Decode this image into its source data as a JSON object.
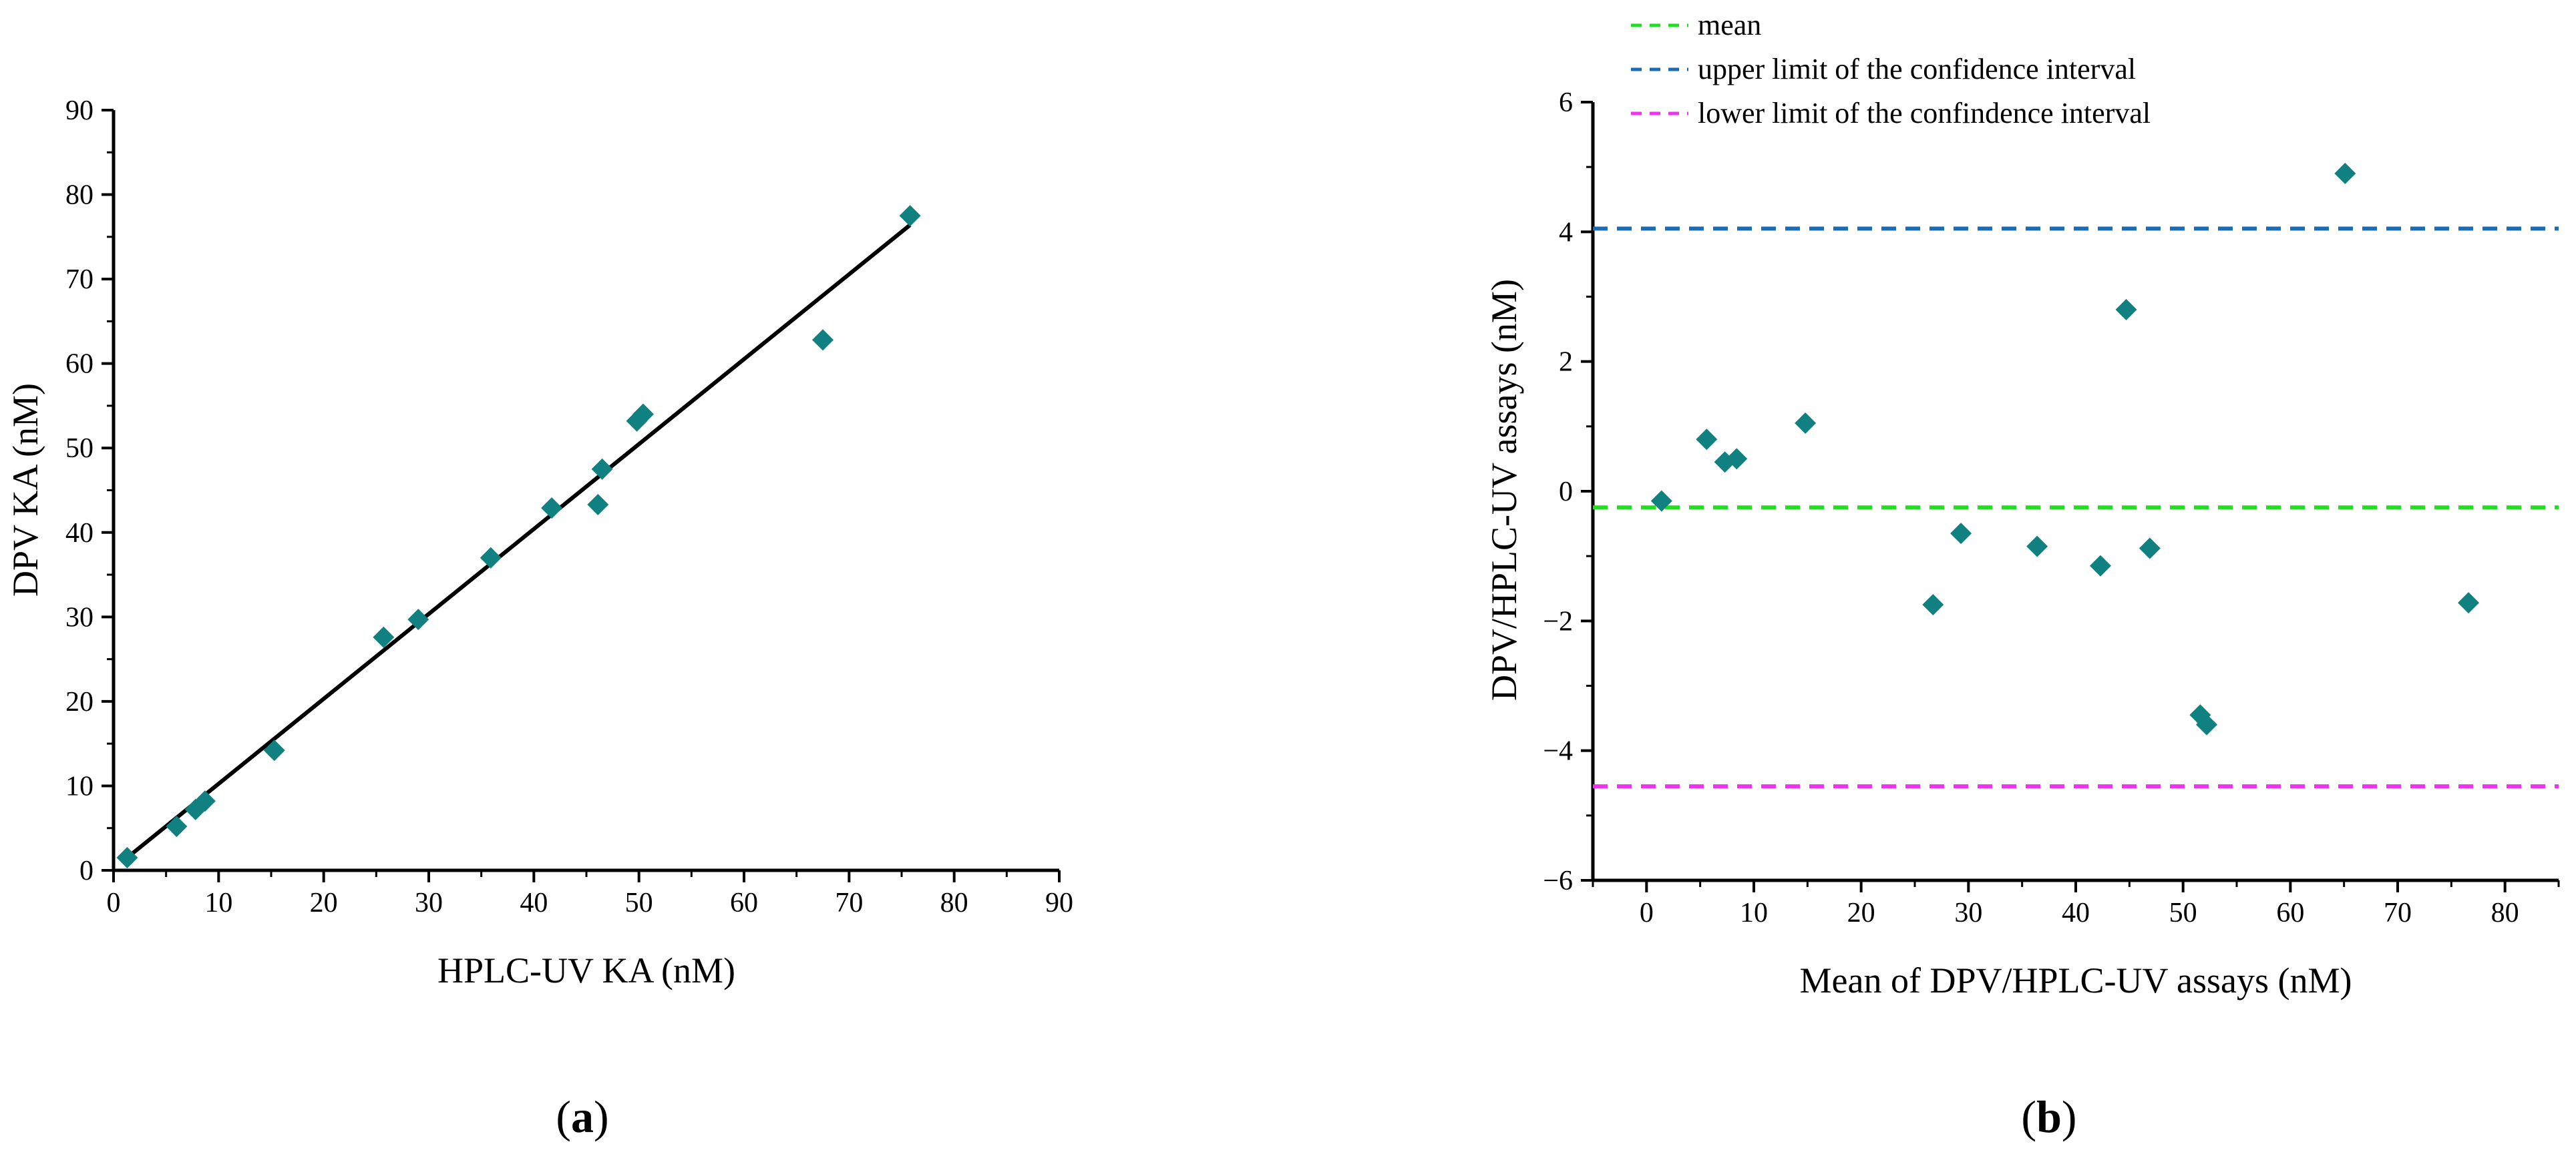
{
  "chart_data": [
    {
      "type": "scatter",
      "panel_label_paren_open": "(",
      "panel_label": "a",
      "panel_label_paren_close": ")",
      "xlabel": "HPLC-UV KA (nM)",
      "ylabel": "DPV KA (nM)",
      "xlim": [
        0,
        90
      ],
      "ylim": [
        0,
        90
      ],
      "xticks": [
        "0",
        "10",
        "20",
        "30",
        "40",
        "50",
        "60",
        "70",
        "80",
        "90"
      ],
      "yticks": [
        "0",
        "10",
        "20",
        "30",
        "40",
        "50",
        "60",
        "70",
        "80",
        "90"
      ],
      "marker_color": "#118080",
      "fit_line": {
        "x": [
          1.0,
          75.8
        ],
        "y": [
          1.2,
          76.4
        ],
        "color": "#000000"
      },
      "points": [
        {
          "x": 1.3,
          "y": 1.5
        },
        {
          "x": 6.0,
          "y": 5.2
        },
        {
          "x": 7.8,
          "y": 7.2
        },
        {
          "x": 8.7,
          "y": 8.2
        },
        {
          "x": 15.3,
          "y": 14.2
        },
        {
          "x": 25.7,
          "y": 27.6
        },
        {
          "x": 29.0,
          "y": 29.7
        },
        {
          "x": 35.9,
          "y": 37.0
        },
        {
          "x": 41.7,
          "y": 42.9
        },
        {
          "x": 46.1,
          "y": 43.3
        },
        {
          "x": 46.5,
          "y": 47.5
        },
        {
          "x": 49.8,
          "y": 53.2
        },
        {
          "x": 50.4,
          "y": 54.0
        },
        {
          "x": 67.5,
          "y": 62.8
        },
        {
          "x": 75.8,
          "y": 77.5
        }
      ]
    },
    {
      "type": "scatter",
      "panel_label_paren_open": "(",
      "panel_label": "b",
      "panel_label_paren_close": ")",
      "xlabel": "Mean of DPV/HPLC-UV assays (nM)",
      "ylabel": "DPV/HPLC-UV assays (nM)",
      "xlim": [
        -5,
        85
      ],
      "ylim": [
        -6,
        6
      ],
      "xticks": [
        "0",
        "10",
        "20",
        "30",
        "40",
        "50",
        "60",
        "70",
        "80"
      ],
      "yticks": [
        "-6",
        "-4",
        "-2",
        "0",
        "2",
        "4",
        "6"
      ],
      "marker_color": "#118080",
      "reference_lines": [
        {
          "name": "mean",
          "label": "mean",
          "y": -0.25,
          "color": "#22dd22"
        },
        {
          "name": "upper",
          "label": "upper limit of the confidence interval",
          "y": 4.05,
          "color": "#1a6db3"
        },
        {
          "name": "lower",
          "label": "lower limit of the confindence interval",
          "y": -4.55,
          "color": "#ee33ee"
        }
      ],
      "points": [
        {
          "x": 1.4,
          "y": -0.15
        },
        {
          "x": 5.6,
          "y": 0.8
        },
        {
          "x": 7.3,
          "y": 0.45
        },
        {
          "x": 8.4,
          "y": 0.5
        },
        {
          "x": 14.8,
          "y": 1.05
        },
        {
          "x": 26.7,
          "y": -1.75
        },
        {
          "x": 29.3,
          "y": -0.65
        },
        {
          "x": 36.4,
          "y": -0.85
        },
        {
          "x": 42.3,
          "y": -1.15
        },
        {
          "x": 44.7,
          "y": 2.8
        },
        {
          "x": 46.9,
          "y": -0.88
        },
        {
          "x": 51.6,
          "y": -3.45
        },
        {
          "x": 52.2,
          "y": -3.6
        },
        {
          "x": 65.1,
          "y": 4.9
        },
        {
          "x": 76.6,
          "y": -1.72
        }
      ]
    }
  ]
}
